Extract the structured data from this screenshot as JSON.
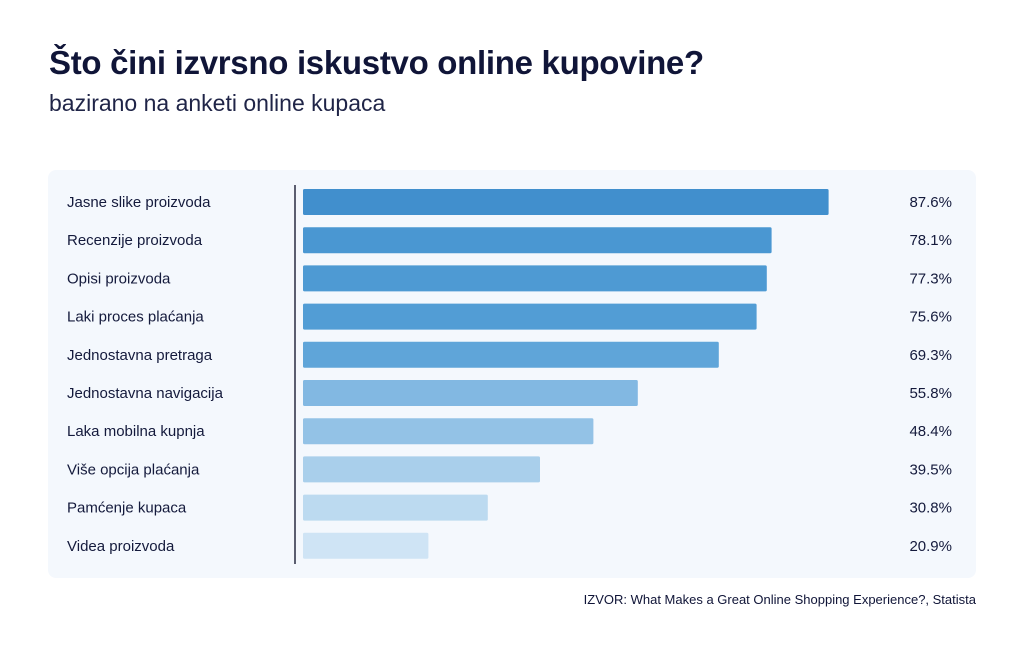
{
  "title": "Što čini izvrsno iskustvo online kupovine?",
  "subtitle": "bazirano na anketi online kupaca",
  "source": "IZVOR: What Makes a Great Online Shopping Experience?, Statista",
  "chart_data": {
    "type": "bar",
    "orientation": "horizontal",
    "title": "Što čini izvrsno iskustvo online kupovine?",
    "subtitle": "bazirano na anketi online kupaca",
    "xlabel": "",
    "ylabel": "",
    "xlim": [
      0,
      100
    ],
    "grid": false,
    "categories": [
      "Jasne slike proizvoda",
      "Recenzije proizvoda",
      "Opisi proizvoda",
      "Laki proces plaćanja",
      "Jednostavna pretraga",
      "Jednostavna navigacija",
      "Laka mobilna kupnja",
      "Više opcija plaćanja",
      "Pamćenje kupaca",
      "Videa proizvoda"
    ],
    "values": [
      87.6,
      78.1,
      77.3,
      75.6,
      69.3,
      55.8,
      48.4,
      39.5,
      30.8,
      20.9
    ],
    "value_labels": [
      "87.6%",
      "78.1%",
      "77.3%",
      "75.6%",
      "69.3%",
      "55.8%",
      "48.4%",
      "39.5%",
      "30.8%",
      "20.9%"
    ],
    "colors": [
      "#418fcd",
      "#4a97d2",
      "#4e9ad3",
      "#529dd5",
      "#5fa5d9",
      "#82b8e2",
      "#93c2e6",
      "#a9cfeb",
      "#bcdaf0",
      "#cfe4f5"
    ]
  }
}
